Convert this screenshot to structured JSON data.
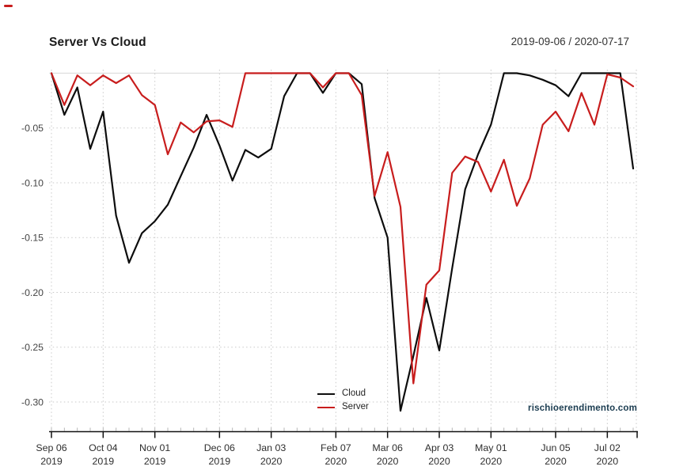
{
  "header": {
    "title": "Server Vs Cloud",
    "date_range": "2019-09-06 / 2020-07-17"
  },
  "watermark": "rischioerendimento.com",
  "colors": {
    "cloud_line": "#0d0d0d",
    "server_line": "#c81d1d",
    "grid": "#c9c9c9",
    "zero_line": "#dddddd",
    "axis": "#111111",
    "minor_tick": "#b5b5b5",
    "tick_label": "#2e2e2e",
    "y_label": "#444444",
    "watermark_color": "#1b3c50"
  },
  "legend": {
    "items": [
      {
        "label": "Cloud",
        "color": "#0d0d0d"
      },
      {
        "label": "Server",
        "color": "#c81d1d"
      }
    ]
  },
  "chart_data": {
    "type": "line",
    "title": "Server Vs Cloud",
    "subtitle": "2019-09-06 / 2020-07-17",
    "grid": "dotted",
    "legend_position": "bottom-center",
    "ylim": [
      -0.3275,
      0.003
    ],
    "y_ticks": [
      "-0.05",
      "-0.10",
      "-0.15",
      "-0.20",
      "-0.25",
      "-0.30"
    ],
    "x": [
      "2019-09-06",
      "2019-09-13",
      "2019-09-20",
      "2019-09-27",
      "2019-10-04",
      "2019-10-11",
      "2019-10-18",
      "2019-10-25",
      "2019-11-01",
      "2019-11-08",
      "2019-11-15",
      "2019-11-22",
      "2019-11-29",
      "2019-12-06",
      "2019-12-13",
      "2019-12-20",
      "2019-12-27",
      "2020-01-03",
      "2020-01-10",
      "2020-01-17",
      "2020-01-24",
      "2020-01-31",
      "2020-02-07",
      "2020-02-14",
      "2020-02-21",
      "2020-02-28",
      "2020-03-06",
      "2020-03-13",
      "2020-03-20",
      "2020-03-27",
      "2020-04-03",
      "2020-04-10",
      "2020-04-17",
      "2020-04-24",
      "2020-05-01",
      "2020-05-08",
      "2020-05-15",
      "2020-05-22",
      "2020-05-29",
      "2020-06-05",
      "2020-06-12",
      "2020-06-19",
      "2020-06-26",
      "2020-07-02",
      "2020-07-10",
      "2020-07-17"
    ],
    "x_ticks": [
      {
        "index": 0,
        "label": "Sep 06",
        "year": "2019"
      },
      {
        "index": 4,
        "label": "Oct 04",
        "year": "2019"
      },
      {
        "index": 8,
        "label": "Nov 01",
        "year": "2019"
      },
      {
        "index": 13,
        "label": "Dec 06",
        "year": "2019"
      },
      {
        "index": 17,
        "label": "Jan 03",
        "year": "2020"
      },
      {
        "index": 22,
        "label": "Feb 07",
        "year": "2020"
      },
      {
        "index": 26,
        "label": "Mar 06",
        "year": "2020"
      },
      {
        "index": 30,
        "label": "Apr 03",
        "year": "2020"
      },
      {
        "index": 34,
        "label": "May 01",
        "year": "2020"
      },
      {
        "index": 39,
        "label": "Jun 05",
        "year": "2020"
      },
      {
        "index": 43,
        "label": "Jul 02",
        "year": "2020"
      }
    ],
    "series": [
      {
        "name": "Cloud",
        "color": "#0d0d0d",
        "values": [
          0.0,
          -0.038,
          -0.013,
          -0.069,
          -0.035,
          -0.13,
          -0.173,
          -0.146,
          -0.135,
          -0.12,
          -0.094,
          -0.068,
          -0.038,
          -0.066,
          -0.098,
          -0.07,
          -0.077,
          -0.069,
          -0.021,
          0.0,
          0.0,
          -0.018,
          0.0,
          0.0,
          -0.01,
          -0.114,
          -0.15,
          -0.308,
          -0.258,
          -0.205,
          -0.253,
          -0.178,
          -0.106,
          -0.074,
          -0.047,
          0.0,
          0.0,
          -0.002,
          -0.006,
          -0.011,
          -0.021,
          0.0,
          0.0,
          0.0,
          0.0,
          -0.087
        ]
      },
      {
        "name": "Server",
        "color": "#c81d1d",
        "values": [
          0.0,
          -0.029,
          -0.002,
          -0.011,
          -0.002,
          -0.009,
          -0.002,
          -0.02,
          -0.029,
          -0.074,
          -0.045,
          -0.054,
          -0.044,
          -0.043,
          -0.049,
          0.0,
          0.0,
          0.0,
          0.0,
          0.0,
          0.0,
          -0.013,
          0.0,
          0.0,
          -0.02,
          -0.112,
          -0.072,
          -0.122,
          -0.283,
          -0.193,
          -0.18,
          -0.091,
          -0.076,
          -0.081,
          -0.108,
          -0.079,
          -0.121,
          -0.096,
          -0.047,
          -0.035,
          -0.053,
          -0.018,
          -0.047,
          -0.001,
          -0.004,
          -0.012
        ]
      }
    ]
  }
}
